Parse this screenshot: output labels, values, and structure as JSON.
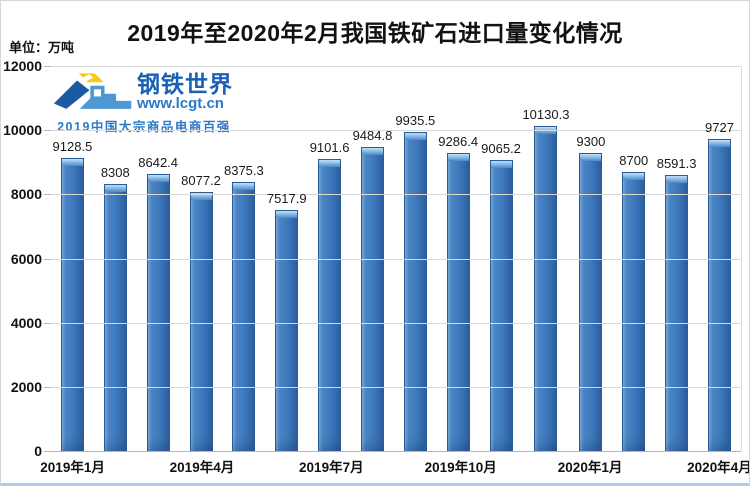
{
  "chart_data": {
    "type": "bar",
    "title": "2019年至2020年2月我国铁矿石进口量变化情况",
    "unit_label": "单位：万吨",
    "ylim": [
      0,
      12000
    ],
    "y_ticks": [
      0,
      2000,
      4000,
      6000,
      8000,
      10000,
      12000
    ],
    "values": [
      9128.5,
      8308,
      8642.4,
      8077.2,
      8375.3,
      7517.9,
      9101.6,
      9484.8,
      9935.5,
      9286.4,
      9065.2,
      10130.3,
      9300,
      8700,
      8591.3,
      9727
    ],
    "x_tick_labels": [
      "2019年1月",
      "2019年4月",
      "2019年7月",
      "2019年10月",
      "2020年1月",
      "2020年4月"
    ],
    "x_tick_positions": [
      0,
      3,
      6,
      9,
      12,
      15
    ],
    "grid": true,
    "legend": "none",
    "bar_color": "#3e78bc",
    "gridline_color": "#d9d9d9"
  },
  "logo": {
    "brand": "钢铁世界",
    "url": "www.lcgt.cn",
    "tagline": "2019中国大宗商品电商百强",
    "brand_color": "#1a61b5"
  },
  "frame": {
    "bottom_accent_color": "#b3cbe6"
  }
}
